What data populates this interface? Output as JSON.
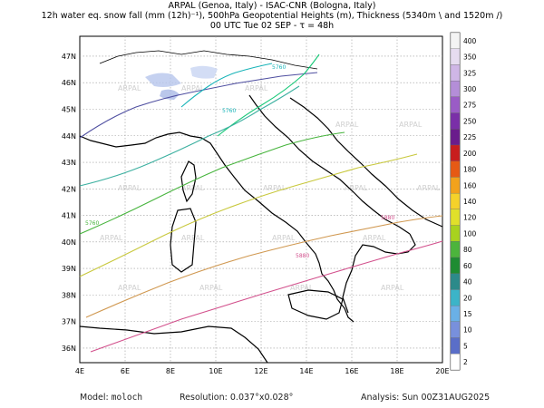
{
  "title": {
    "line1": "ARPAL (Genoa, Italy)  -  ISAC-CNR (Bologna, Italy)",
    "line2": "12h water eq. snow fall (mm (12h)⁻¹), 500hPa Geopotential Heights (m), Thickness (5340m \\ and 1520m /)",
    "line3": "00 UTC Tue 02 SEP  -  τ = 48h"
  },
  "axes": {
    "lat_labels": [
      "47N",
      "46N",
      "45N",
      "44N",
      "43N",
      "42N",
      "41N",
      "40N",
      "39N",
      "38N",
      "37N",
      "36N"
    ],
    "lon_labels": [
      "4E",
      "6E",
      "8E",
      "10E",
      "12E",
      "14E",
      "16E",
      "18E",
      "20E"
    ]
  },
  "colorbar": {
    "levels": [
      "400",
      "350",
      "325",
      "300",
      "275",
      "250",
      "225",
      "200",
      "180",
      "160",
      "140",
      "120",
      "100",
      "80",
      "60",
      "40",
      "20",
      "15",
      "10",
      "5",
      "2"
    ],
    "colors": [
      "#f4f4f4",
      "#e6dcf0",
      "#cfb6e6",
      "#b48ed8",
      "#9a5cc6",
      "#7a2fa8",
      "#6a1c8c",
      "#c81e1e",
      "#e65a14",
      "#f2a21c",
      "#f5d22a",
      "#e0e02a",
      "#a8d21e",
      "#4cb43c",
      "#1e8c32",
      "#2c8a8a",
      "#3cb4c8",
      "#6ab0e6",
      "#7890dc",
      "#5a6ec8",
      "#ffffff"
    ]
  },
  "contours": {
    "height_labels": [
      "5760",
      "5760",
      "5880",
      "5880",
      "5760"
    ],
    "watermark": "ARPAL"
  },
  "footer": {
    "model_label": "Model:",
    "model_value": "moloch",
    "resolution_label": "Resolution:",
    "resolution_value": "0.037°x0.028°",
    "analysis_label": "Analysis:",
    "analysis_value": "Sun 00Z31AUG2025"
  }
}
